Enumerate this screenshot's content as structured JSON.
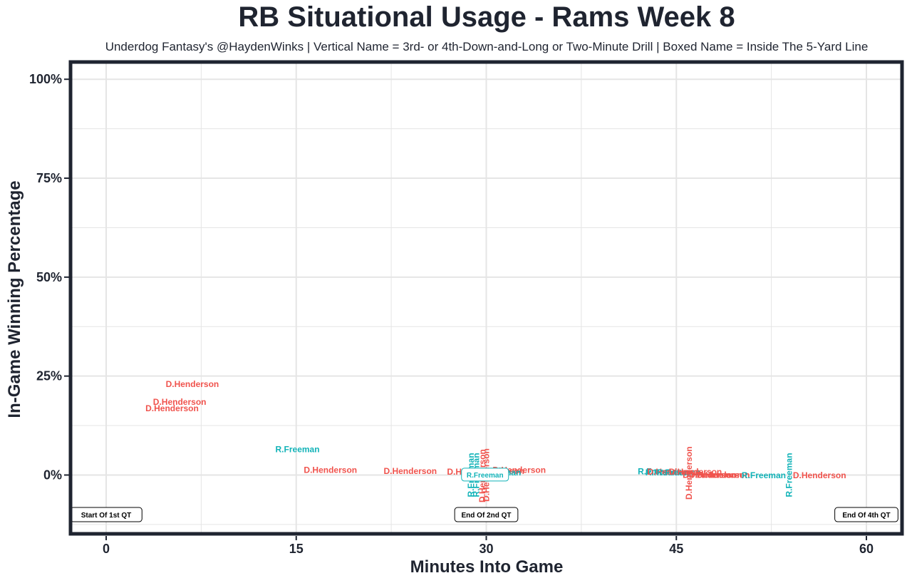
{
  "chart_data": {
    "type": "scatter",
    "title": "RB Situational Usage - Rams Week 8",
    "subtitle": "Underdog Fantasy's @HaydenWinks | Vertical Name = 3rd- or 4th-Down-and-Long or Two-Minute Drill | Boxed Name = Inside The 5-Yard Line",
    "xlabel": "Minutes Into Game",
    "ylabel": "In-Game Winning Percentage",
    "xlim": [
      -2.7,
      62.7
    ],
    "ylim": [
      -0.145,
      1.04
    ],
    "x_ticks": [
      0,
      15,
      30,
      45,
      60
    ],
    "x_tick_labels": [
      "0",
      "15",
      "30",
      "45",
      "60"
    ],
    "y_ticks": [
      0,
      0.25,
      0.5,
      0.75,
      1.0
    ],
    "y_tick_labels": [
      "0%",
      "25%",
      "50%",
      "75%",
      "100%"
    ],
    "grid": true,
    "colors": {
      "D.Henderson": "#f0534d",
      "R.Freeman": "#12b3b8",
      "panel_border": "#1f2430",
      "grid": "#e5e5e5"
    },
    "points": [
      {
        "x": 6.8,
        "y": 0.23,
        "label": "D.Henderson",
        "style": "normal"
      },
      {
        "x": 5.8,
        "y": 0.185,
        "label": "D.Henderson",
        "style": "normal"
      },
      {
        "x": 5.2,
        "y": 0.168,
        "label": "D.Henderson",
        "style": "normal"
      },
      {
        "x": 15.1,
        "y": 0.065,
        "label": "R.Freeman",
        "style": "normal"
      },
      {
        "x": 17.7,
        "y": 0.013,
        "label": "D.Henderson",
        "style": "normal"
      },
      {
        "x": 24.0,
        "y": 0.01,
        "label": "D.Henderson",
        "style": "normal"
      },
      {
        "x": 29.0,
        "y": 0.008,
        "label": "D.Henderson",
        "style": "normal"
      },
      {
        "x": 30.9,
        "y": 0.01,
        "label": "D.Henderson",
        "style": "normal"
      },
      {
        "x": 32.6,
        "y": 0.013,
        "label": "D.Henderson",
        "style": "normal"
      },
      {
        "x": 31.0,
        "y": 0.006,
        "label": "R.Freeman",
        "style": "normal"
      },
      {
        "x": 28.8,
        "y": 0.0,
        "label": "R.Freeman",
        "style": "vertical"
      },
      {
        "x": 29.2,
        "y": 0.0,
        "label": "R.Freeman",
        "style": "vertical"
      },
      {
        "x": 29.7,
        "y": -0.002,
        "label": "D.Henderson",
        "style": "vertical"
      },
      {
        "x": 30.0,
        "y": 0.0,
        "label": "D.Henderson",
        "style": "vertical"
      },
      {
        "x": 29.9,
        "y": 0.001,
        "label": "R.Freeman",
        "style": "boxed"
      },
      {
        "x": 43.7,
        "y": 0.009,
        "label": "R.Freeman",
        "style": "normal"
      },
      {
        "x": 44.3,
        "y": 0.006,
        "label": "R.Freeman",
        "style": "normal"
      },
      {
        "x": 44.8,
        "y": 0.008,
        "label": "D.Henderson",
        "style": "normal"
      },
      {
        "x": 45.2,
        "y": 0.006,
        "label": "R.Freeman",
        "style": "normal"
      },
      {
        "x": 46.0,
        "y": 0.005,
        "label": "D.Henderson",
        "style": "vertical"
      },
      {
        "x": 46.5,
        "y": 0.008,
        "label": "D.Henderson",
        "style": "normal"
      },
      {
        "x": 47.6,
        "y": 0.0,
        "label": "D.Henderson",
        "style": "normal"
      },
      {
        "x": 48.1,
        "y": 0.0,
        "label": "D.Henderson",
        "style": "normal"
      },
      {
        "x": 48.7,
        "y": 0.0,
        "label": "D.Henderson",
        "style": "normal"
      },
      {
        "x": 51.9,
        "y": -0.001,
        "label": "R.Freeman",
        "style": "normal"
      },
      {
        "x": 53.9,
        "y": 0.0,
        "label": "R.Freeman",
        "style": "vertical"
      },
      {
        "x": 56.3,
        "y": -0.001,
        "label": "D.Henderson",
        "style": "normal"
      }
    ],
    "annotations": [
      {
        "x": 0,
        "y": -0.1,
        "label": "Start Of 1st QT"
      },
      {
        "x": 30,
        "y": -0.1,
        "label": "End Of 2nd QT"
      },
      {
        "x": 60,
        "y": -0.1,
        "label": "End Of 4th QT"
      }
    ]
  }
}
